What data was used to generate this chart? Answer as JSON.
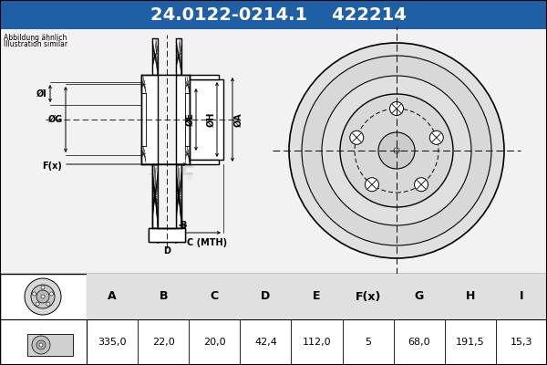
{
  "title_part": "24.0122-0214.1",
  "title_code": "422214",
  "header_bg": "#1f5fa6",
  "header_text_color": "#ffffff",
  "body_bg": "#f2f2f2",
  "note_line1": "Abbildung ähnlich",
  "note_line2": "Illustration similar",
  "col_headers": [
    "A",
    "B",
    "C",
    "D",
    "E",
    "F(x)",
    "G",
    "H",
    "I"
  ],
  "col_values": [
    "335,0",
    "22,0",
    "20,0",
    "42,4",
    "112,0",
    "5",
    "68,0",
    "191,5",
    "15,3"
  ],
  "watermark": "ATE"
}
